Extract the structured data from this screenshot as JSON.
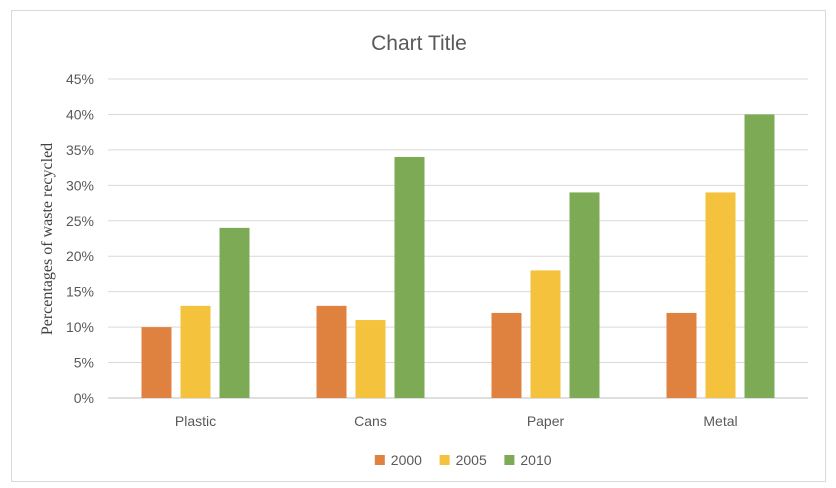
{
  "chart_data": {
    "type": "bar",
    "title": "Chart Title",
    "xlabel": "",
    "ylabel": "Percentages of waste recycled",
    "categories": [
      "Plastic",
      "Cans",
      "Paper",
      "Metal"
    ],
    "series": [
      {
        "name": "2000",
        "values": [
          10,
          13,
          12,
          12
        ],
        "color": "#E0823F"
      },
      {
        "name": "2005",
        "values": [
          13,
          11,
          18,
          29
        ],
        "color": "#F5C23E"
      },
      {
        "name": "2010",
        "values": [
          24,
          34,
          29,
          40
        ],
        "color": "#7DAA55"
      }
    ],
    "ylim": [
      0,
      45
    ],
    "ytick_step": 5,
    "ytick_labels": [
      "0%",
      "5%",
      "10%",
      "15%",
      "20%",
      "25%",
      "30%",
      "35%",
      "40%",
      "45%"
    ],
    "grid": true,
    "legend_position": "bottom"
  }
}
